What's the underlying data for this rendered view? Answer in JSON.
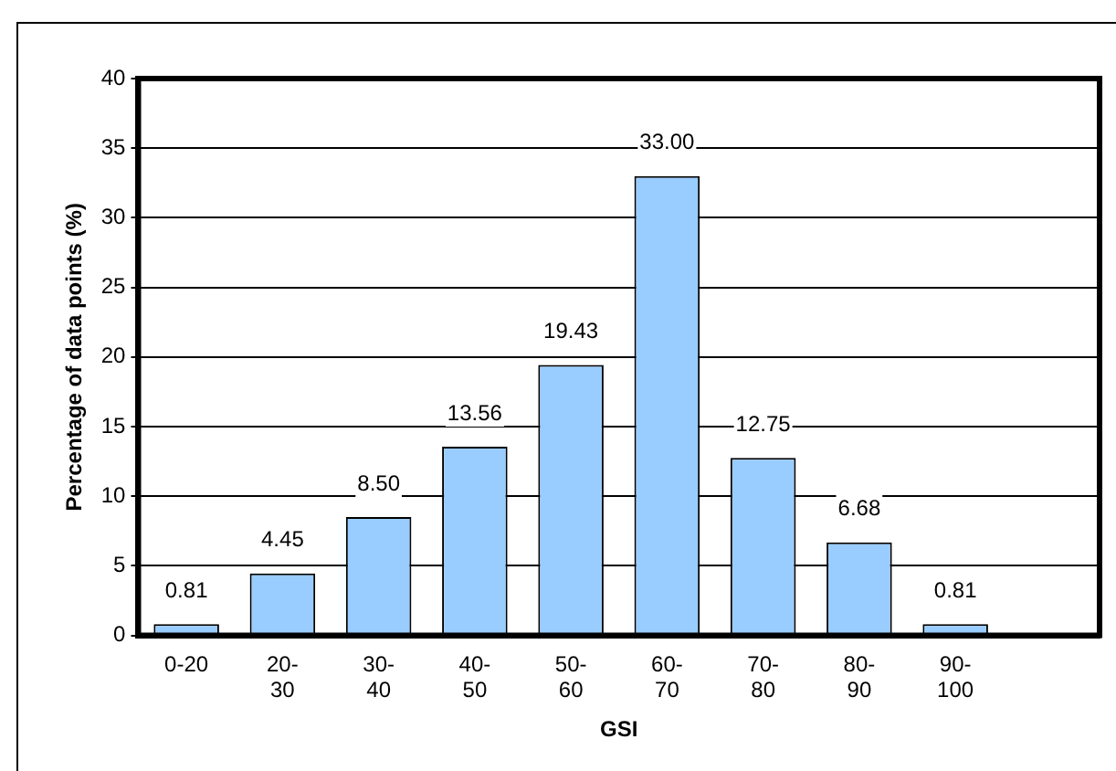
{
  "chart_data": {
    "type": "bar",
    "xlabel": "GSI",
    "ylabel": "Percentage of data points (%)",
    "categories": [
      "0-20",
      "20-30",
      "30-40",
      "40-50",
      "50-60",
      "60-70",
      "70-80",
      "80-90",
      "90-100",
      null
    ],
    "values": [
      0.81,
      4.45,
      8.5,
      13.56,
      19.43,
      33.0,
      12.75,
      6.68,
      0.81,
      null
    ],
    "value_labels": [
      "0.81",
      "4.45",
      "8.50",
      "13.56",
      "19.43",
      "33.00",
      "12.75",
      "6.68",
      "0.81",
      null
    ],
    "color": "#99ccff",
    "ylim": [
      0,
      40
    ],
    "yticks": [
      0,
      5,
      10,
      15,
      20,
      25,
      30,
      35,
      40
    ],
    "grid": "y",
    "legend": false
  }
}
